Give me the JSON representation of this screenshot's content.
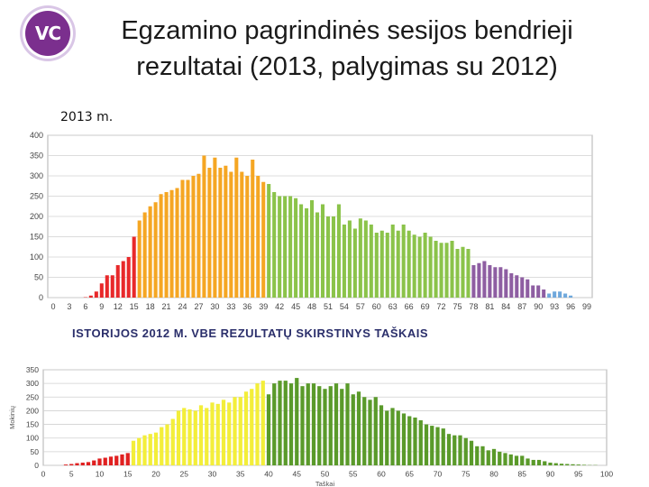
{
  "logo": {
    "text": "VC"
  },
  "header": {
    "title_line1": "Egzamino pagrindinės sesijos bendrieji",
    "title_line2": "rezultatai (2013, palygimas su 2012)"
  },
  "subtitle": "2013 m.",
  "chart_data": [
    {
      "type": "bar",
      "title": "",
      "xlabel": "",
      "ylabel": "",
      "ylim": [
        0,
        400
      ],
      "yticks": [
        0,
        50,
        100,
        150,
        200,
        250,
        300,
        350,
        400
      ],
      "xticks": [
        0,
        3,
        6,
        9,
        12,
        15,
        18,
        21,
        24,
        27,
        30,
        33,
        36,
        39,
        42,
        45,
        48,
        51,
        54,
        57,
        60,
        63,
        66,
        69,
        72,
        75,
        78,
        81,
        84,
        87,
        90,
        93,
        96,
        99
      ],
      "grid": true,
      "x": [
        0,
        1,
        2,
        3,
        4,
        5,
        6,
        7,
        8,
        9,
        10,
        11,
        12,
        13,
        14,
        15,
        16,
        17,
        18,
        19,
        20,
        21,
        22,
        23,
        24,
        25,
        26,
        27,
        28,
        29,
        30,
        31,
        32,
        33,
        34,
        35,
        36,
        37,
        38,
        39,
        40,
        41,
        42,
        43,
        44,
        45,
        46,
        47,
        48,
        49,
        50,
        51,
        52,
        53,
        54,
        55,
        56,
        57,
        58,
        59,
        60,
        61,
        62,
        63,
        64,
        65,
        66,
        67,
        68,
        69,
        70,
        71,
        72,
        73,
        74,
        75,
        76,
        77,
        78,
        79,
        80,
        81,
        82,
        83,
        84,
        85,
        86,
        87,
        88,
        89,
        90,
        91,
        92,
        93,
        94,
        95,
        96,
        97,
        98,
        99
      ],
      "values": [
        0,
        0,
        0,
        0,
        0,
        0,
        1,
        5,
        15,
        35,
        55,
        55,
        80,
        90,
        100,
        150,
        190,
        210,
        225,
        235,
        255,
        260,
        265,
        270,
        290,
        290,
        300,
        305,
        350,
        320,
        345,
        320,
        325,
        310,
        345,
        310,
        300,
        340,
        300,
        285,
        280,
        260,
        250,
        250,
        250,
        245,
        230,
        220,
        240,
        210,
        230,
        200,
        200,
        230,
        180,
        190,
        170,
        195,
        190,
        180,
        160,
        165,
        160,
        180,
        165,
        180,
        165,
        155,
        150,
        160,
        150,
        140,
        135,
        135,
        140,
        120,
        125,
        120,
        80,
        85,
        90,
        80,
        75,
        75,
        70,
        60,
        55,
        50,
        45,
        30,
        30,
        20,
        10,
        15,
        15,
        10,
        5,
        0,
        0,
        0
      ],
      "colors": [
        "#e8282a",
        "#f5a623",
        "#8bc34a",
        "#8e5ea2",
        "#6fa8dc"
      ],
      "color_breaks": [
        16,
        40,
        78,
        92
      ]
    },
    {
      "type": "bar",
      "title": "ISTORIJOS 2012 M. VBE REZULTATŲ SKIRSTINYS TAŠKAIS",
      "xlabel": "Taškai",
      "ylabel": "Mokinių",
      "ylim": [
        0,
        350
      ],
      "yticks": [
        0,
        50,
        100,
        150,
        200,
        250,
        300,
        350
      ],
      "xticks": [
        0,
        5,
        10,
        15,
        20,
        25,
        30,
        35,
        40,
        45,
        50,
        55,
        60,
        65,
        70,
        75,
        80,
        85,
        90,
        95,
        100
      ],
      "grid": true,
      "x": [
        1,
        2,
        3,
        4,
        5,
        6,
        7,
        8,
        9,
        10,
        11,
        12,
        13,
        14,
        15,
        16,
        17,
        18,
        19,
        20,
        21,
        22,
        23,
        24,
        25,
        26,
        27,
        28,
        29,
        30,
        31,
        32,
        33,
        34,
        35,
        36,
        37,
        38,
        39,
        40,
        41,
        42,
        43,
        44,
        45,
        46,
        47,
        48,
        49,
        50,
        51,
        52,
        53,
        54,
        55,
        56,
        57,
        58,
        59,
        60,
        61,
        62,
        63,
        64,
        65,
        66,
        67,
        68,
        69,
        70,
        71,
        72,
        73,
        74,
        75,
        76,
        77,
        78,
        79,
        80,
        81,
        82,
        83,
        84,
        85,
        86,
        87,
        88,
        89,
        90,
        91,
        92,
        93,
        94,
        95,
        96,
        97,
        98,
        99,
        100
      ],
      "values": [
        0,
        0,
        0,
        3,
        5,
        8,
        10,
        12,
        18,
        25,
        28,
        32,
        35,
        40,
        45,
        90,
        100,
        110,
        115,
        120,
        140,
        150,
        170,
        200,
        210,
        205,
        200,
        220,
        210,
        230,
        225,
        240,
        230,
        250,
        250,
        270,
        280,
        300,
        310,
        260,
        300,
        310,
        310,
        300,
        320,
        290,
        300,
        300,
        290,
        280,
        290,
        300,
        280,
        300,
        260,
        270,
        250,
        240,
        250,
        220,
        200,
        210,
        200,
        190,
        180,
        175,
        165,
        150,
        145,
        140,
        135,
        115,
        110,
        110,
        100,
        90,
        70,
        70,
        55,
        60,
        50,
        45,
        40,
        35,
        35,
        25,
        20,
        20,
        15,
        10,
        8,
        6,
        5,
        4,
        3,
        2,
        1,
        1,
        0,
        0
      ],
      "colors": [
        "#e02020",
        "#f3ee3a",
        "#5a9a2a",
        "#9aa0a6"
      ],
      "color_breaks": [
        16,
        40,
        999
      ]
    }
  ]
}
